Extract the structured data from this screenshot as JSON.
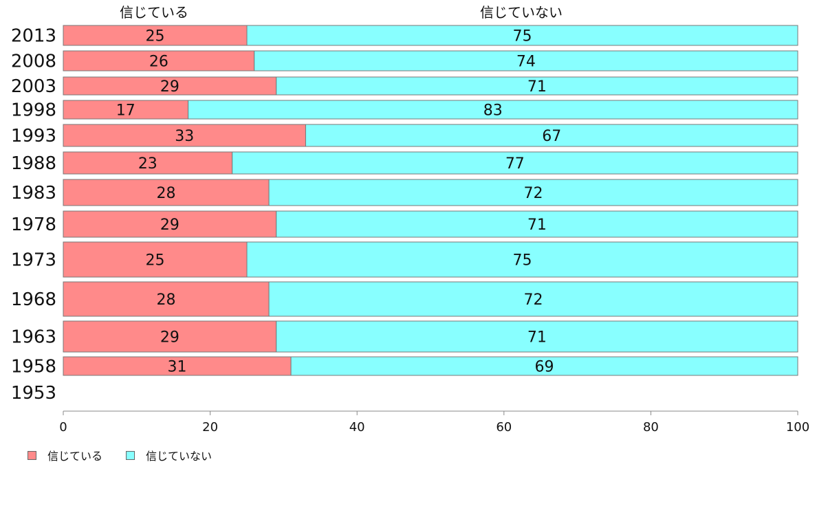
{
  "chart_data": {
    "type": "bar",
    "orientation": "horizontal",
    "stacked": true,
    "categories": [
      "2013",
      "2008",
      "2003",
      "1998",
      "1993",
      "1988",
      "1983",
      "1978",
      "1973",
      "1968",
      "1963",
      "1958",
      "1953"
    ],
    "series": [
      {
        "name": "信じている",
        "color": "#ff8a8a",
        "values": [
          25,
          26,
          29,
          17,
          33,
          23,
          28,
          29,
          25,
          28,
          29,
          31,
          null
        ]
      },
      {
        "name": "信じていない",
        "color": "#88ffff",
        "values": [
          75,
          74,
          71,
          83,
          67,
          77,
          72,
          71,
          75,
          72,
          71,
          69,
          null
        ]
      }
    ],
    "data_labels": {
      "信じている": [
        "25",
        "26",
        "29",
        "17",
        "33",
        "23",
        "28",
        "29",
        "25",
        "28",
        "29",
        "31",
        ""
      ],
      "信じていない": [
        "75",
        "74",
        "71",
        "83",
        "67",
        "77",
        "72",
        "71",
        "75",
        "72",
        "71",
        "69",
        ""
      ]
    },
    "top_labels": [
      "信じている",
      "信じていない"
    ],
    "xlim": [
      0,
      100
    ],
    "xticks": [
      "0",
      "20",
      "40",
      "60",
      "80",
      "100"
    ],
    "grid": false,
    "legend_position": "bottom-left"
  },
  "legend": {
    "items": [
      {
        "label": "信じている",
        "color": "#ff8a8a"
      },
      {
        "label": "信じていない",
        "color": "#88ffff"
      }
    ]
  }
}
